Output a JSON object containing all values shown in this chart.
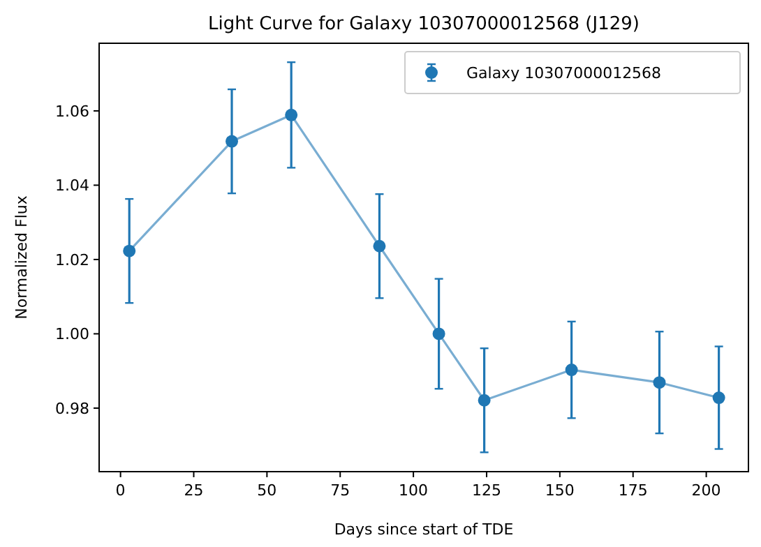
{
  "chart_data": {
    "type": "line",
    "title": "Light Curve for Galaxy 10307000012568 (J129)",
    "xlabel": "Days since start of TDE",
    "ylabel": "Normalized Flux",
    "x": [
      3,
      38,
      58.3,
      88.4,
      108.7,
      124.2,
      154,
      184,
      204.3
    ],
    "series": [
      {
        "name": "Galaxy 10307000012568",
        "color": "#1f77b4",
        "values": [
          1.0223,
          1.0518,
          1.0589,
          1.0236,
          1.0,
          0.9821,
          0.9903,
          0.9869,
          0.9828
        ],
        "errors": [
          0.014,
          0.014,
          0.0142,
          0.014,
          0.0148,
          0.014,
          0.013,
          0.0137,
          0.0138
        ]
      }
    ],
    "xlim": [
      -7.3,
      214.4
    ],
    "ylim": [
      0.9629,
      1.0782
    ],
    "xticks": [
      0,
      25,
      50,
      75,
      100,
      125,
      150,
      175,
      200
    ],
    "yticks": [
      {
        "value": 0.98,
        "label": "0.98"
      },
      {
        "value": 1.0,
        "label": "1.00"
      },
      {
        "value": 1.02,
        "label": "1.02"
      },
      {
        "value": 1.04,
        "label": "1.04"
      },
      {
        "value": 1.06,
        "label": "1.06"
      }
    ],
    "marker": "circle",
    "line_style": "solid",
    "legend": "top right",
    "grid": false
  }
}
